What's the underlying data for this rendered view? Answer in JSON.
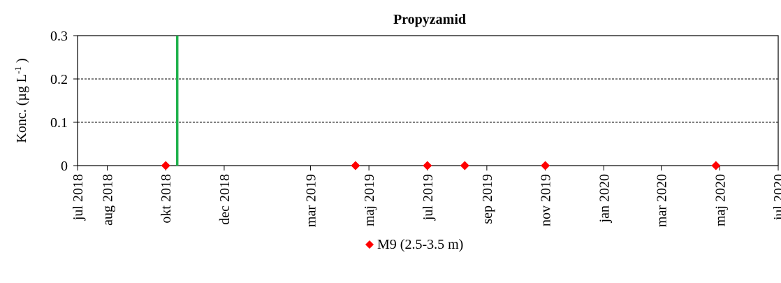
{
  "chart_data": {
    "type": "scatter",
    "title": "Propyzamid",
    "ylabel": "Konc. (µg L-1 )",
    "ylim": [
      0,
      0.3
    ],
    "yticks": [
      0,
      0.1,
      0.2,
      0.3
    ],
    "ytick_labels": [
      "0",
      "0.1",
      "0.2",
      "0.3"
    ],
    "y_gridlines": [
      0.1,
      0.2
    ],
    "y_gridline_style": "dashed",
    "xlim": [
      "2018-07-01",
      "2020-07-01"
    ],
    "xticks": [
      "2018-07-01",
      "2018-08-01",
      "2018-10-01",
      "2018-12-01",
      "2019-03-01",
      "2019-05-01",
      "2019-07-01",
      "2019-09-01",
      "2019-11-01",
      "2020-01-01",
      "2020-03-01",
      "2020-05-01",
      "2020-07-01"
    ],
    "xtick_labels": [
      "jul 2018",
      "aug 2018",
      "okt 2018",
      "dec 2018",
      "mar 2019",
      "maj 2019",
      "jul 2019",
      "sep 2019",
      "nov 2019",
      "jan 2020",
      "mar 2020",
      "maj 2020",
      "jul 2020"
    ],
    "series": [
      {
        "name": "M9 (2.5-3.5 m)",
        "marker": "diamond",
        "color": "#ff0000",
        "x": [
          "2018-10-01",
          "2019-04-17",
          "2019-07-01",
          "2019-08-09",
          "2019-11-01",
          "2020-04-27"
        ],
        "y": [
          0,
          0,
          0,
          0,
          0,
          0
        ]
      }
    ],
    "reference_lines": [
      {
        "x": "2018-10-13",
        "color": "#1fb14c"
      }
    ],
    "legend": {
      "position": "bottom-center",
      "entries": [
        "M9 (2.5-3.5 m)"
      ]
    }
  }
}
